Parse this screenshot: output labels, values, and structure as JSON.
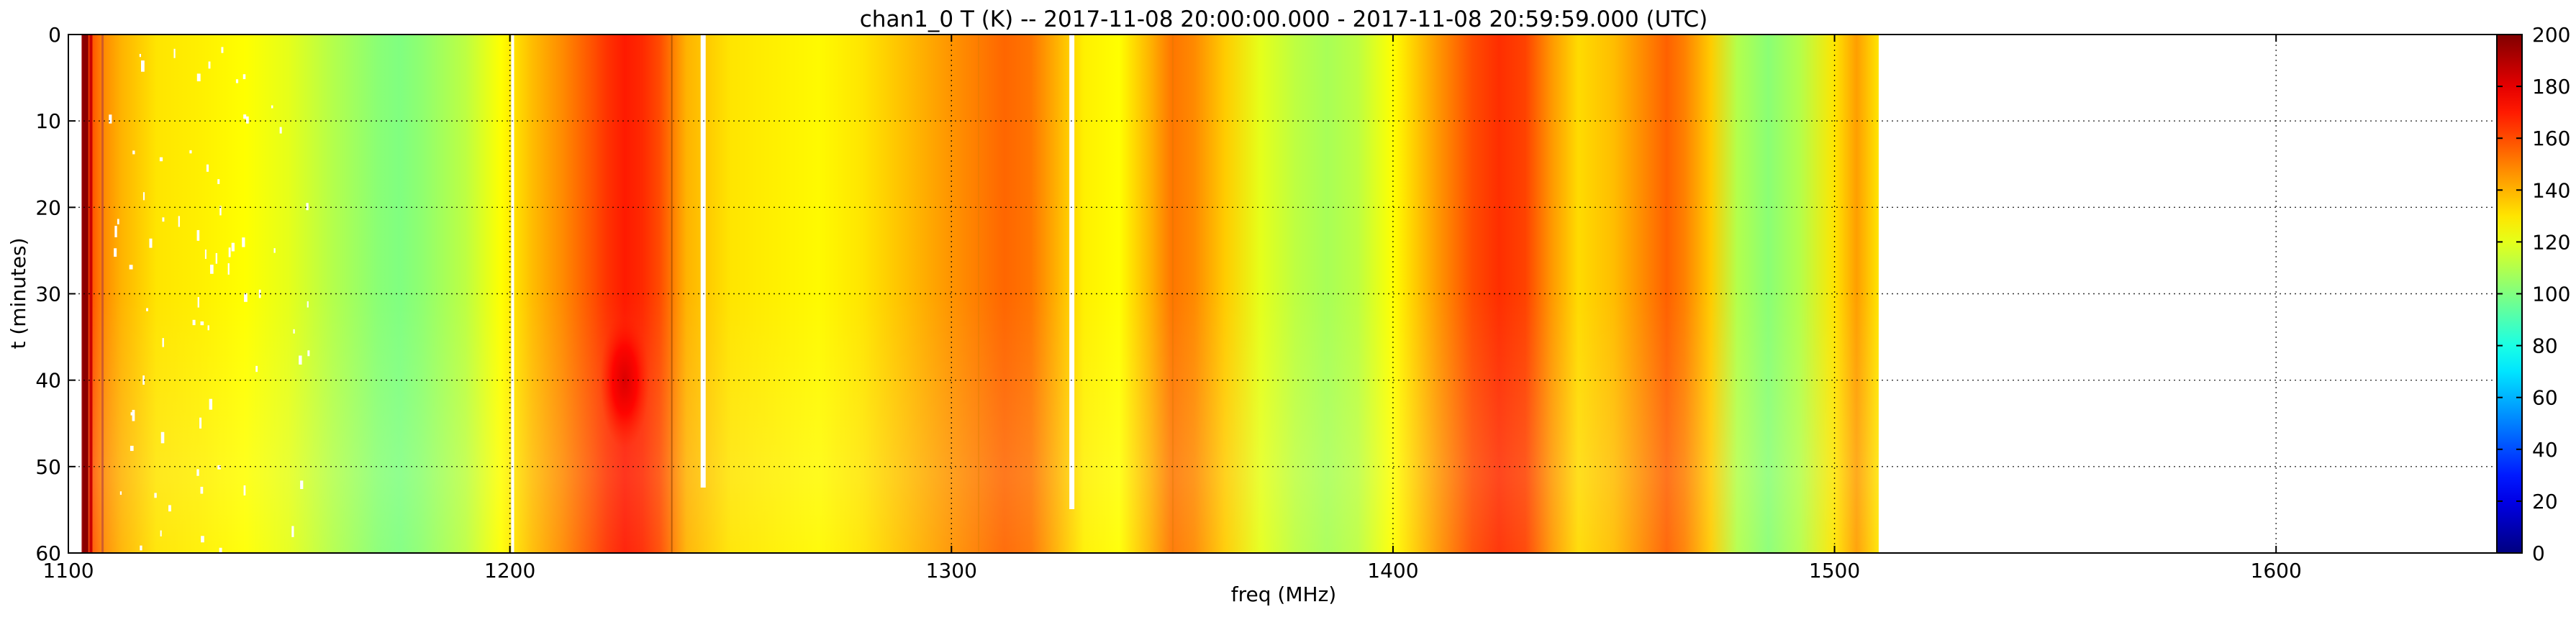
{
  "chart_data": {
    "type": "heatmap",
    "title": "chan1_0 T (K) -- 2017-11-08 20:00:00.000 - 2017-11-08 20:59:59.000 (UTC)",
    "xlabel": "freq (MHz)",
    "ylabel": "t (minutes)",
    "xlim": [
      1100,
      1650
    ],
    "ylim": [
      0,
      60
    ],
    "y_inverted": true,
    "x_ticks": [
      1100,
      1200,
      1300,
      1400,
      1500,
      1600
    ],
    "y_ticks": [
      0,
      10,
      20,
      30,
      40,
      50,
      60
    ],
    "grid": true,
    "data_extent_x": [
      1103,
      1510
    ],
    "colormap": "jet",
    "colorbar": {
      "range": [
        0,
        200
      ],
      "ticks": [
        0,
        20,
        40,
        60,
        80,
        100,
        120,
        140,
        160,
        180,
        200
      ]
    },
    "spectrum_profile": {
      "freq": [
        1103,
        1105,
        1108,
        1112,
        1120,
        1130,
        1140,
        1150,
        1160,
        1170,
        1175,
        1180,
        1190,
        1198,
        1205,
        1212,
        1218,
        1222,
        1226,
        1230,
        1234,
        1240,
        1250,
        1260,
        1270,
        1280,
        1290,
        1300,
        1308,
        1312,
        1318,
        1325,
        1330,
        1338,
        1345,
        1350,
        1355,
        1362,
        1370,
        1378,
        1385,
        1392,
        1400,
        1410,
        1418,
        1424,
        1430,
        1436,
        1442,
        1450,
        1458,
        1462,
        1466,
        1472,
        1478,
        1485,
        1492,
        1500,
        1505,
        1510
      ],
      "temperature_K": [
        195,
        160,
        148,
        140,
        130,
        128,
        125,
        120,
        110,
        102,
        100,
        103,
        112,
        125,
        138,
        148,
        158,
        165,
        170,
        167,
        160,
        140,
        130,
        128,
        126,
        130,
        138,
        146,
        152,
        155,
        152,
        138,
        128,
        125,
        140,
        152,
        148,
        135,
        120,
        112,
        108,
        112,
        125,
        145,
        160,
        166,
        162,
        145,
        132,
        138,
        150,
        156,
        150,
        135,
        110,
        102,
        110,
        130,
        144,
        130
      ]
    },
    "hot_spot": {
      "freq_MHz": 1226,
      "t_minutes": 40,
      "peak_K": 182
    },
    "masked_columns_MHz": [
      1200.5,
      1243.5,
      1327
    ]
  }
}
